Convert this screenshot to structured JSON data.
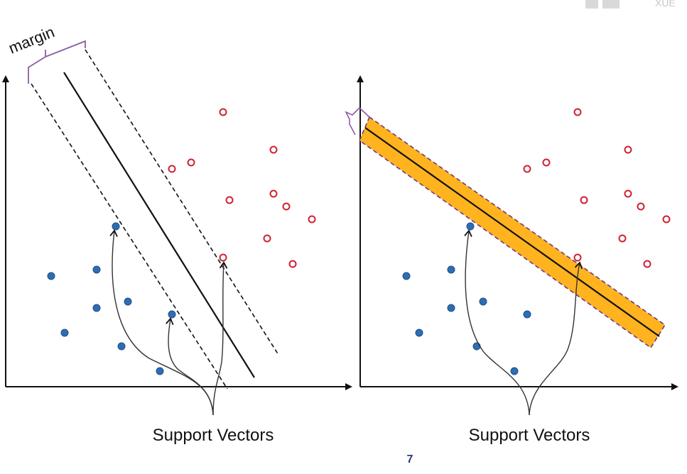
{
  "margin_label": "margin",
  "left_caption": "Support Vectors",
  "right_caption": "Support Vectors",
  "page_number": "7",
  "corner_text": "XUE",
  "colors": {
    "axis": "#111111",
    "class_a_fill": "#2e6db3",
    "class_a_stroke": "#1d4f8a",
    "class_b_stroke": "#cc2233",
    "margin_band": "#ffb31f",
    "margin_band_border": "#6a3a8a",
    "bracket": "#8a5fa3",
    "page_number": "#2a3c6e"
  }
}
